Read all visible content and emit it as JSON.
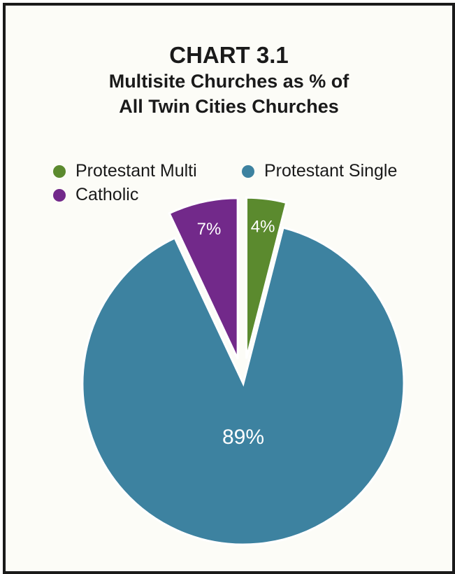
{
  "chart_data": {
    "type": "pie",
    "title": "CHART 3.1",
    "subtitle_lines": [
      "Multisite Churches as % of",
      "All Twin Cities Churches"
    ],
    "categories": [
      "Protestant Multi",
      "Protestant Single",
      "Catholic"
    ],
    "values": [
      4,
      89,
      7
    ],
    "data_labels": [
      "4%",
      "89%",
      "7%"
    ],
    "colors": [
      "#5b8a2e",
      "#3d82a0",
      "#72298a"
    ],
    "exploded": [
      "Protestant Multi",
      "Catholic"
    ],
    "legend_position": "top"
  }
}
